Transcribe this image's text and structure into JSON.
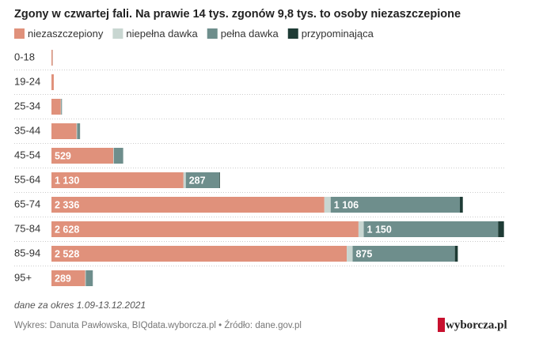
{
  "chart_data": {
    "type": "stacked-barh",
    "title": "Zgony w czwartej fali. Na prawie 14 tys. zgonów 9,8 tys. to osoby niezaszczepione",
    "categories": [
      "0-18",
      "19-24",
      "25-34",
      "35-44",
      "45-54",
      "55-64",
      "65-74",
      "75-84",
      "85-94",
      "95+"
    ],
    "series": [
      {
        "name": "niezaszczepiony",
        "color": "#e0917b",
        "values": [
          10,
          20,
          80,
          215,
          529,
          1130,
          2336,
          2628,
          2528,
          289
        ],
        "value_labels": [
          null,
          null,
          null,
          null,
          "529",
          "1 130",
          "2 336",
          "2 628",
          "2 528",
          "289"
        ]
      },
      {
        "name": "niepełna dawka",
        "color": "#c8d6d1",
        "values": [
          0,
          0,
          3,
          5,
          5,
          20,
          54,
          45,
          50,
          5
        ]
      },
      {
        "name": "pełna dawka",
        "color": "#6e8e8c",
        "values": [
          1,
          0,
          7,
          25,
          80,
          287,
          1106,
          1150,
          875,
          60
        ],
        "value_labels": [
          null,
          null,
          null,
          null,
          null,
          "287",
          "1 106",
          "1 150",
          "875",
          null
        ]
      },
      {
        "name": "przypominająca",
        "color": "#1e3b35",
        "values": [
          0,
          0,
          0,
          0,
          0,
          5,
          25,
          50,
          25,
          0
        ]
      }
    ],
    "xlim": [
      0,
      3880
    ],
    "note": "dane za okres 1.09-13.12.2021",
    "source": "Wykres: Danuta Pawłowska, BIQdata.wyborcza.pl • Źródło: dane.gov.pl",
    "logo": "wyborcza.pl"
  }
}
